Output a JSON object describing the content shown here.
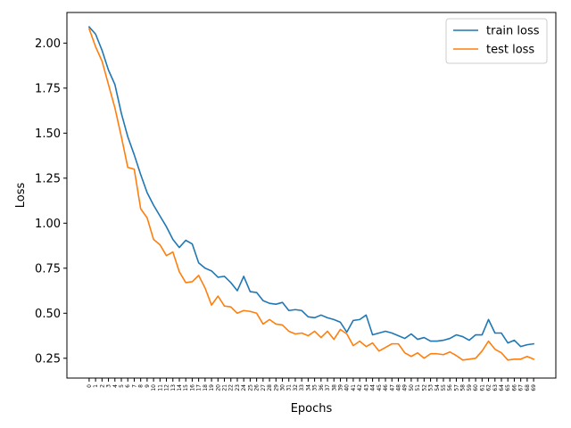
{
  "chart_data": {
    "type": "line",
    "title": "",
    "xlabel": "Epochs",
    "ylabel": "Loss",
    "xlim": [
      -3.45,
      72.45
    ],
    "ylim": [
      0.14,
      2.17
    ],
    "yticks": [
      0.25,
      0.5,
      0.75,
      1.0,
      1.25,
      1.5,
      1.75,
      2.0
    ],
    "ytick_labels": [
      "0.25",
      "0.50",
      "0.75",
      "1.00",
      "1.25",
      "1.50",
      "1.75",
      "2.00"
    ],
    "x": [
      0,
      1,
      2,
      3,
      4,
      5,
      6,
      7,
      8,
      9,
      10,
      11,
      12,
      13,
      14,
      15,
      16,
      17,
      18,
      19,
      20,
      21,
      22,
      23,
      24,
      25,
      26,
      27,
      28,
      29,
      30,
      31,
      32,
      33,
      34,
      35,
      36,
      37,
      38,
      39,
      40,
      41,
      42,
      43,
      44,
      45,
      46,
      47,
      48,
      49,
      50,
      51,
      52,
      53,
      54,
      55,
      56,
      57,
      58,
      59,
      60,
      61,
      62,
      63,
      64,
      65,
      66,
      67,
      68,
      69
    ],
    "xtick_labels": [
      "0",
      "1",
      "2",
      "3",
      "4",
      "5",
      "6",
      "7",
      "8",
      "9",
      "10",
      "11",
      "12",
      "13",
      "14",
      "15",
      "16",
      "17",
      "18",
      "19",
      "20",
      "21",
      "22",
      "23",
      "24",
      "25",
      "26",
      "27",
      "28",
      "29",
      "30",
      "31",
      "32",
      "33",
      "34",
      "35",
      "36",
      "37",
      "38",
      "39",
      "40",
      "41",
      "42",
      "43",
      "44",
      "45",
      "46",
      "47",
      "48",
      "49",
      "50",
      "51",
      "52",
      "53",
      "54",
      "55",
      "56",
      "57",
      "58",
      "59",
      "60",
      "61",
      "62",
      "63",
      "64",
      "65",
      "66",
      "67",
      "68",
      "69"
    ],
    "legend_position": "top-right",
    "grid": false,
    "series": [
      {
        "name": "train loss",
        "color": "#1f77b4",
        "values": [
          2.09,
          2.05,
          1.96,
          1.85,
          1.77,
          1.61,
          1.48,
          1.38,
          1.27,
          1.17,
          1.1,
          1.04,
          0.98,
          0.91,
          0.865,
          0.905,
          0.885,
          0.78,
          0.75,
          0.735,
          0.7,
          0.705,
          0.67,
          0.625,
          0.705,
          0.62,
          0.615,
          0.57,
          0.555,
          0.55,
          0.56,
          0.515,
          0.52,
          0.515,
          0.48,
          0.475,
          0.49,
          0.475,
          0.465,
          0.45,
          0.395,
          0.46,
          0.465,
          0.49,
          0.38,
          0.39,
          0.4,
          0.39,
          0.375,
          0.36,
          0.385,
          0.355,
          0.365,
          0.345,
          0.345,
          0.35,
          0.36,
          0.38,
          0.37,
          0.35,
          0.38,
          0.38,
          0.465,
          0.39,
          0.39,
          0.335,
          0.35,
          0.315,
          0.325,
          0.33
        ]
      },
      {
        "name": "test loss",
        "color": "#ff7f0e",
        "values": [
          2.08,
          1.98,
          1.9,
          1.77,
          1.64,
          1.48,
          1.31,
          1.3,
          1.08,
          1.03,
          0.91,
          0.88,
          0.82,
          0.84,
          0.73,
          0.67,
          0.675,
          0.71,
          0.64,
          0.545,
          0.595,
          0.54,
          0.535,
          0.5,
          0.515,
          0.51,
          0.5,
          0.44,
          0.465,
          0.44,
          0.435,
          0.4,
          0.385,
          0.39,
          0.375,
          0.4,
          0.365,
          0.4,
          0.355,
          0.41,
          0.385,
          0.32,
          0.345,
          0.315,
          0.335,
          0.29,
          0.31,
          0.33,
          0.33,
          0.28,
          0.26,
          0.28,
          0.25,
          0.275,
          0.275,
          0.27,
          0.285,
          0.265,
          0.24,
          0.245,
          0.25,
          0.29,
          0.345,
          0.3,
          0.28,
          0.24,
          0.245,
          0.245,
          0.26,
          0.245
        ]
      }
    ]
  }
}
